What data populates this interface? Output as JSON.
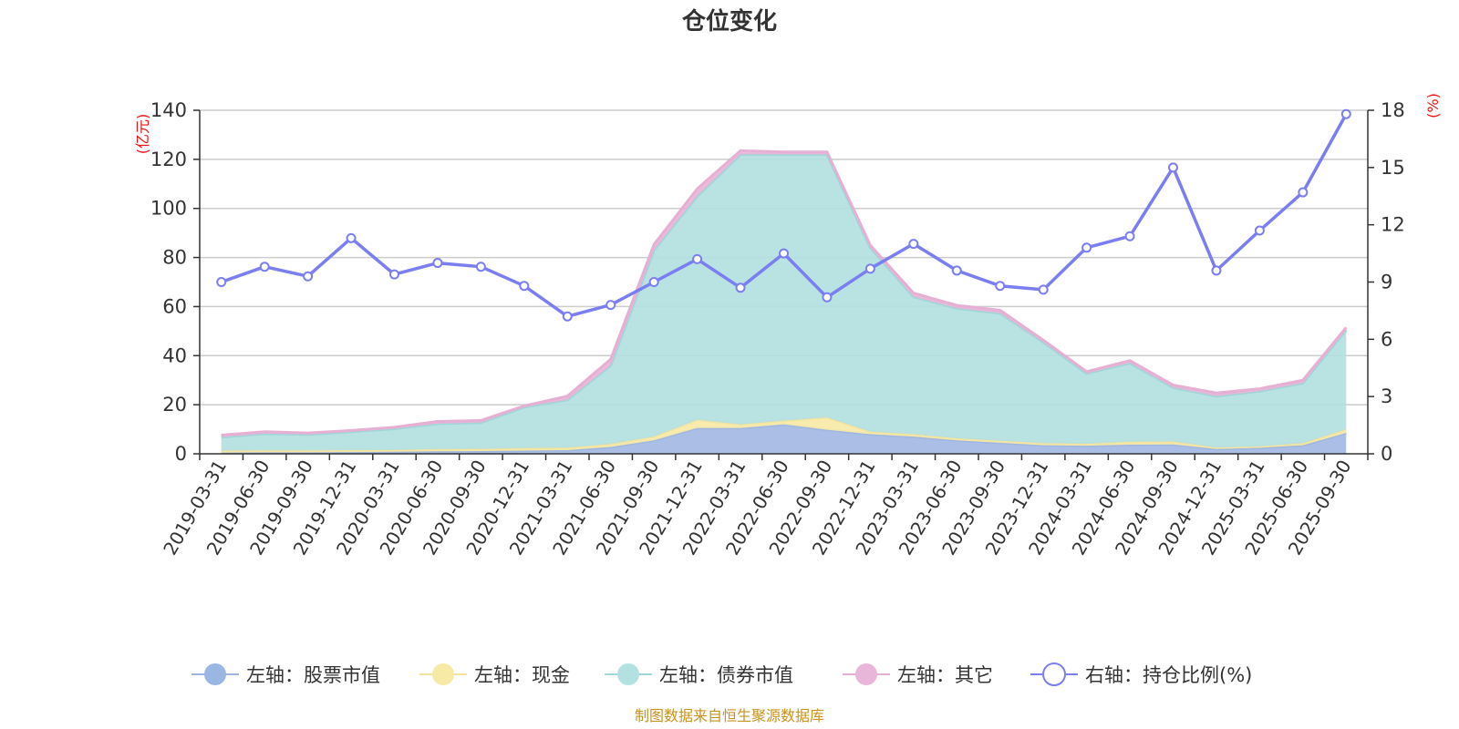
{
  "chart_data": {
    "type": "area",
    "title": "仓位变化",
    "left_axis_unit": "(亿元)",
    "right_axis_unit": "(%)",
    "left_ylim": [
      0,
      140
    ],
    "left_ticks": [
      0,
      20,
      40,
      60,
      80,
      100,
      120,
      140
    ],
    "right_ylim": [
      0,
      18
    ],
    "right_ticks": [
      0,
      3,
      6,
      9,
      12,
      15,
      18
    ],
    "categories": [
      "2019-03-31",
      "2019-06-30",
      "2019-09-30",
      "2019-12-31",
      "2020-03-31",
      "2020-06-30",
      "2020-09-30",
      "2020-12-31",
      "2021-03-31",
      "2021-06-30",
      "2021-09-30",
      "2021-12-31",
      "2022-03-31",
      "2022-06-30",
      "2022-09-30",
      "2022-12-31",
      "2023-03-31",
      "2023-06-30",
      "2023-09-30",
      "2023-12-31",
      "2024-03-31",
      "2024-06-30",
      "2024-09-30",
      "2024-12-31",
      "2025-03-31",
      "2025-06-30",
      "2025-09-30"
    ],
    "series": [
      {
        "name": "左轴：股票市值",
        "axis": "left",
        "kind": "stacked-area",
        "color": "#a3b8e4",
        "line_color": "#9fb7e0",
        "values": [
          0.5,
          0.6,
          0.6,
          0.7,
          0.8,
          1.0,
          1.1,
          1.3,
          1.5,
          2.8,
          5.5,
          10.5,
          10.5,
          12.0,
          9.8,
          8.0,
          7.0,
          5.5,
          4.5,
          3.5,
          3.3,
          3.7,
          3.8,
          2.0,
          2.5,
          3.5,
          8.5
        ]
      },
      {
        "name": "左轴：现金",
        "axis": "left",
        "kind": "stacked-area",
        "color": "#f7e9a6",
        "line_color": "#f5e4a0",
        "values": [
          0.8,
          0.8,
          0.8,
          0.8,
          0.8,
          0.9,
          0.9,
          1.0,
          1.0,
          1.2,
          1.5,
          3.3,
          1.5,
          1.5,
          5.0,
          1.0,
          1.0,
          0.8,
          0.8,
          0.8,
          0.8,
          1.2,
          1.2,
          0.5,
          0.5,
          0.8,
          1.5
        ]
      },
      {
        "name": "左轴：债券市值",
        "axis": "left",
        "kind": "stacked-area",
        "color": "#b3e0e0",
        "line_color": "#9fd6d8",
        "values": [
          5.5,
          6.8,
          6.5,
          7.5,
          8.6,
          10.4,
          10.7,
          16.7,
          19.5,
          32.0,
          76.0,
          91.2,
          110.0,
          108.5,
          107.2,
          75.0,
          56.0,
          53.0,
          52.0,
          41.2,
          28.7,
          32.1,
          22.0,
          21.0,
          22.5,
          24.5,
          40.5
        ]
      },
      {
        "name": "左轴：其它",
        "axis": "left",
        "kind": "stacked-area",
        "color": "#e8b6d8",
        "line_color": "#e6afd4",
        "values": [
          0.8,
          0.8,
          0.6,
          0.5,
          0.6,
          0.9,
          0.9,
          0.5,
          1.5,
          2.5,
          2.3,
          3.0,
          1.5,
          1.0,
          1.0,
          1.0,
          1.5,
          1.2,
          1.2,
          0.8,
          0.7,
          1.0,
          1.0,
          1.3,
          1.0,
          1.2,
          1.0
        ]
      },
      {
        "name": "右轴：持仓比例(%)",
        "axis": "right",
        "kind": "line",
        "color": "#7b7ef0",
        "values": [
          9.0,
          9.8,
          9.3,
          11.3,
          9.4,
          10.0,
          9.8,
          8.8,
          7.2,
          7.8,
          9.0,
          10.2,
          8.7,
          10.5,
          8.2,
          9.7,
          11.0,
          9.6,
          8.8,
          8.6,
          10.8,
          11.4,
          15.0,
          9.6,
          11.7,
          13.7,
          17.8
        ]
      }
    ],
    "source": "制图数据来自恒生聚源数据库"
  }
}
